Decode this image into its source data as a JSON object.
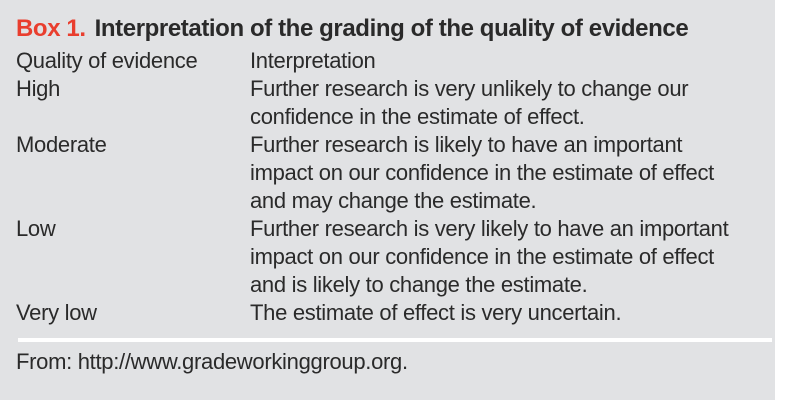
{
  "box": {
    "label": "Box 1.",
    "title": "Interpretation of the grading of the quality of evidence",
    "columns": {
      "quality": "Quality of evidence",
      "interpretation": "Interpretation"
    },
    "rows": [
      {
        "grade": "High",
        "lines": [
          "Further research is very unlikely to change our",
          "confidence in the estimate of effect."
        ]
      },
      {
        "grade": "Moderate",
        "lines": [
          "Further research is likely to have an important",
          "impact on our confidence in the estimate of effect",
          "and may change the estimate."
        ]
      },
      {
        "grade": "Low",
        "lines": [
          "Further research is very likely to have an important",
          "impact on our confidence in the estimate of effect",
          "and is likely to change the estimate."
        ]
      },
      {
        "grade": "Very low",
        "lines": [
          "The estimate of effect is very uncertain."
        ]
      }
    ],
    "source": "From: http://www.gradeworkinggroup.org.",
    "colors": {
      "label_red": "#e93e2e",
      "background_gray": "#e1e2e4",
      "text": "#2a2a2a",
      "rule_white": "#ffffff"
    }
  }
}
